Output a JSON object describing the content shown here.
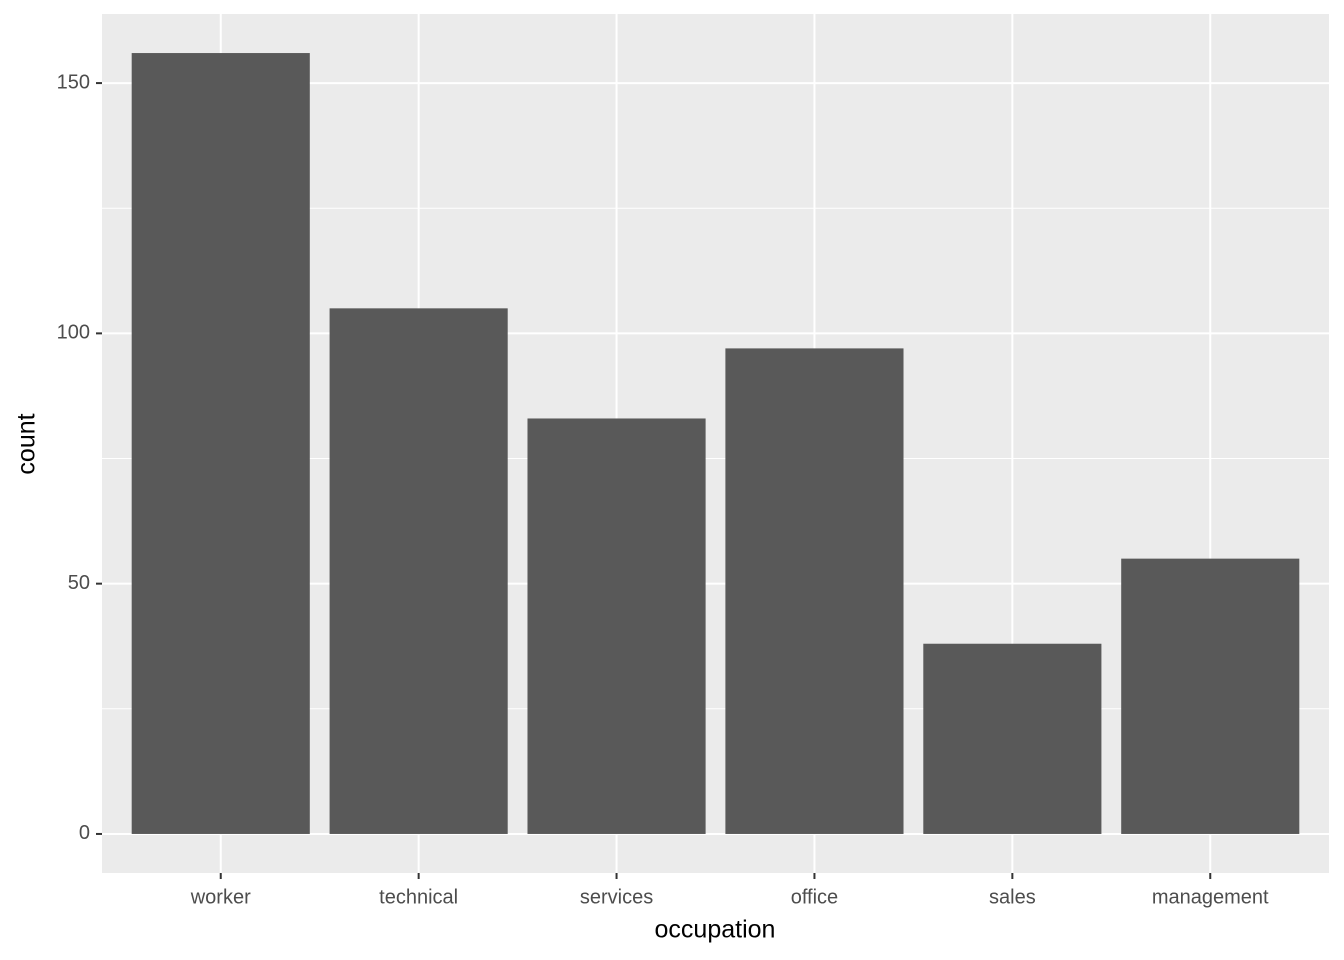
{
  "chart_data": {
    "type": "bar",
    "x_label": "occupation",
    "y_label": "count",
    "categories": [
      "worker",
      "technical",
      "services",
      "office",
      "sales",
      "management"
    ],
    "values": [
      156,
      105,
      83,
      97,
      38,
      55
    ],
    "color": "#595959",
    "ylim": [
      -7.8,
      163.8
    ],
    "yticks": [
      0,
      50,
      100,
      150
    ],
    "y_minor_ticks": [
      25,
      75,
      125
    ],
    "grid": true,
    "panel_background": "#ebebeb"
  }
}
